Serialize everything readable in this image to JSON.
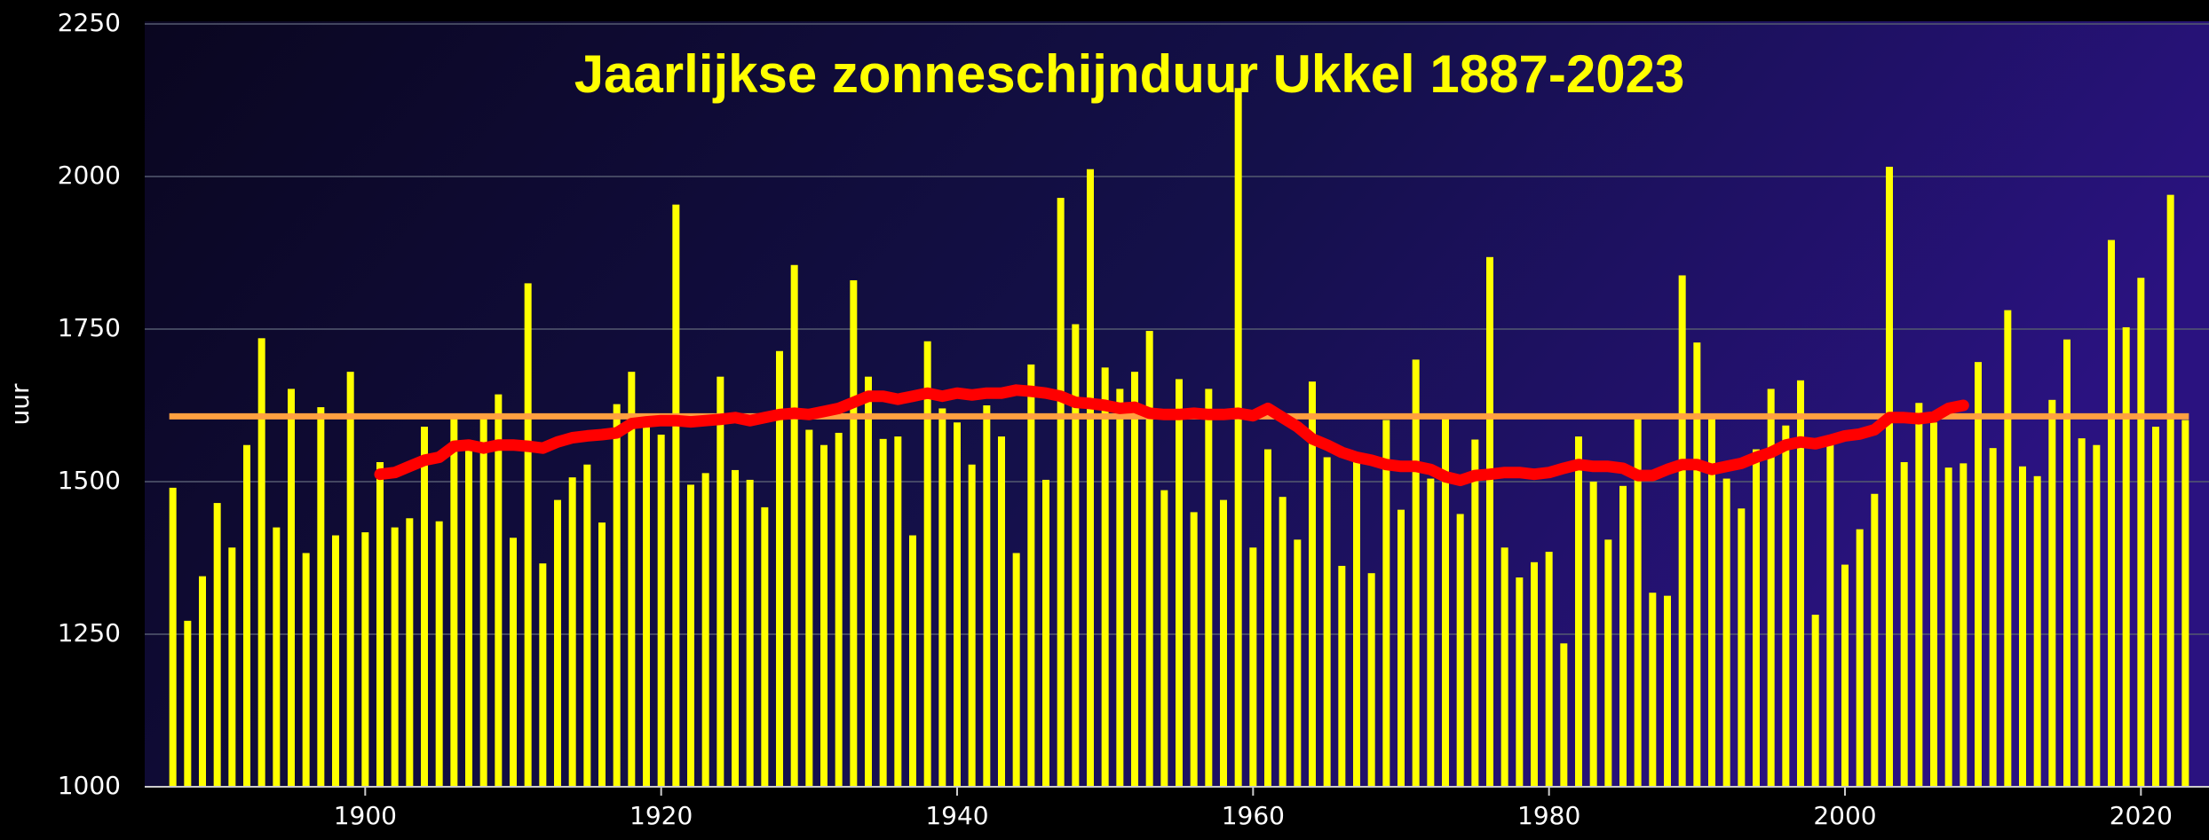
{
  "chart_data": {
    "type": "bar",
    "title": "Jaarlijkse zonneschijnduur Ukkel 1887-2023",
    "y_label": "uur",
    "x": [
      1887,
      1888,
      1889,
      1890,
      1891,
      1892,
      1893,
      1894,
      1895,
      1896,
      1897,
      1898,
      1899,
      1900,
      1901,
      1902,
      1903,
      1904,
      1905,
      1906,
      1907,
      1908,
      1909,
      1910,
      1911,
      1912,
      1913,
      1914,
      1915,
      1916,
      1917,
      1918,
      1919,
      1920,
      1921,
      1922,
      1923,
      1924,
      1925,
      1926,
      1927,
      1928,
      1929,
      1930,
      1931,
      1932,
      1933,
      1934,
      1935,
      1936,
      1937,
      1938,
      1939,
      1940,
      1941,
      1942,
      1943,
      1944,
      1945,
      1946,
      1947,
      1948,
      1949,
      1950,
      1951,
      1952,
      1953,
      1954,
      1955,
      1956,
      1957,
      1958,
      1959,
      1960,
      1961,
      1962,
      1963,
      1964,
      1965,
      1966,
      1967,
      1968,
      1969,
      1970,
      1971,
      1972,
      1973,
      1974,
      1975,
      1976,
      1977,
      1978,
      1979,
      1980,
      1981,
      1982,
      1983,
      1984,
      1985,
      1986,
      1987,
      1988,
      1989,
      1990,
      1991,
      1992,
      1993,
      1994,
      1995,
      1996,
      1997,
      1998,
      1999,
      2000,
      2001,
      2002,
      2003,
      2004,
      2005,
      2006,
      2007,
      2008,
      2009,
      2010,
      2011,
      2012,
      2013,
      2014,
      2015,
      2016,
      2017,
      2018,
      2019,
      2020,
      2021,
      2022,
      2023
    ],
    "values": [
      1490,
      1272,
      1345,
      1465,
      1392,
      1560,
      1735,
      1425,
      1652,
      1383,
      1622,
      1412,
      1680,
      1417,
      1532,
      1425,
      1440,
      1590,
      1435,
      1608,
      1555,
      1605,
      1643,
      1408,
      1825,
      1366,
      1470,
      1507,
      1528,
      1433,
      1627,
      1680,
      1592,
      1577,
      1954,
      1495,
      1514,
      1672,
      1519,
      1503,
      1458,
      1714,
      1855,
      1585,
      1560,
      1580,
      1830,
      1672,
      1570,
      1574,
      1412,
      1730,
      1620,
      1597,
      1528,
      1625,
      1574,
      1383,
      1692,
      1503,
      1965,
      1758,
      2012,
      1687,
      1652,
      1680,
      1747,
      1486,
      1668,
      1450,
      1652,
      1470,
      2145,
      1392,
      1553,
      1475,
      1405,
      1664,
      1540,
      1362,
      1532,
      1350,
      1601,
      1454,
      1700,
      1505,
      1610,
      1447,
      1569,
      1868,
      1392,
      1343,
      1368,
      1385,
      1235,
      1574,
      1500,
      1405,
      1493,
      1606,
      1318,
      1313,
      1838,
      1728,
      1606,
      1505,
      1456,
      1553,
      1652,
      1592,
      1666,
      1282,
      1562,
      1364,
      1422,
      1480,
      2016,
      1532,
      1629,
      1597,
      1523,
      1530,
      1696,
      1555,
      1781,
      1525,
      1509,
      1634,
      1733,
      1571,
      1560,
      1896,
      1753,
      1834,
      1590,
      1970,
      1601
    ],
    "color": "#ffff00",
    "reference_line": {
      "value": 1607,
      "color": "#ffa040"
    },
    "moving_average": {
      "color": "#ff0000",
      "x": [
        1901,
        1902,
        1903,
        1904,
        1905,
        1906,
        1907,
        1908,
        1909,
        1910,
        1911,
        1912,
        1913,
        1914,
        1915,
        1916,
        1917,
        1918,
        1919,
        1920,
        1921,
        1922,
        1923,
        1924,
        1925,
        1926,
        1927,
        1928,
        1929,
        1930,
        1931,
        1932,
        1933,
        1934,
        1935,
        1936,
        1937,
        1938,
        1939,
        1940,
        1941,
        1942,
        1943,
        1944,
        1945,
        1946,
        1947,
        1948,
        1949,
        1950,
        1951,
        1952,
        1953,
        1954,
        1955,
        1956,
        1957,
        1958,
        1959,
        1960,
        1961,
        1962,
        1963,
        1964,
        1965,
        1966,
        1967,
        1968,
        1969,
        1970,
        1971,
        1972,
        1973,
        1974,
        1975,
        1976,
        1977,
        1978,
        1979,
        1980,
        1981,
        1982,
        1983,
        1984,
        1985,
        1986,
        1987,
        1988,
        1989,
        1990,
        1991,
        1992,
        1993,
        1994,
        1995,
        1996,
        1997,
        1998,
        1999,
        2000,
        2001,
        2002,
        2003,
        2004,
        2005,
        2006,
        2007,
        2008
      ],
      "values": [
        1512,
        1515,
        1525,
        1535,
        1540,
        1558,
        1560,
        1555,
        1560,
        1560,
        1558,
        1555,
        1565,
        1572,
        1575,
        1577,
        1580,
        1595,
        1598,
        1600,
        1600,
        1598,
        1600,
        1602,
        1605,
        1600,
        1605,
        1610,
        1612,
        1610,
        1615,
        1620,
        1630,
        1640,
        1640,
        1635,
        1640,
        1645,
        1640,
        1645,
        1642,
        1645,
        1645,
        1650,
        1648,
        1645,
        1640,
        1630,
        1628,
        1625,
        1620,
        1622,
        1612,
        1610,
        1610,
        1612,
        1610,
        1610,
        1612,
        1608,
        1620,
        1605,
        1590,
        1570,
        1560,
        1548,
        1540,
        1535,
        1528,
        1525,
        1525,
        1520,
        1508,
        1502,
        1510,
        1512,
        1515,
        1515,
        1512,
        1515,
        1522,
        1528,
        1525,
        1525,
        1522,
        1510,
        1510,
        1520,
        1528,
        1528,
        1520,
        1525,
        1530,
        1540,
        1548,
        1560,
        1565,
        1562,
        1568,
        1575,
        1578,
        1585,
        1605,
        1605,
        1603,
        1606,
        1620,
        1625
      ]
    },
    "xlim": [
      1885.1,
      2024.6
    ],
    "xticks": [
      1900,
      1920,
      1940,
      1960,
      1980,
      2000,
      2020
    ],
    "ylim": [
      1000,
      2250
    ],
    "yticks": [
      1000,
      1250,
      1500,
      1750,
      2000,
      2250
    ],
    "grid": true
  }
}
